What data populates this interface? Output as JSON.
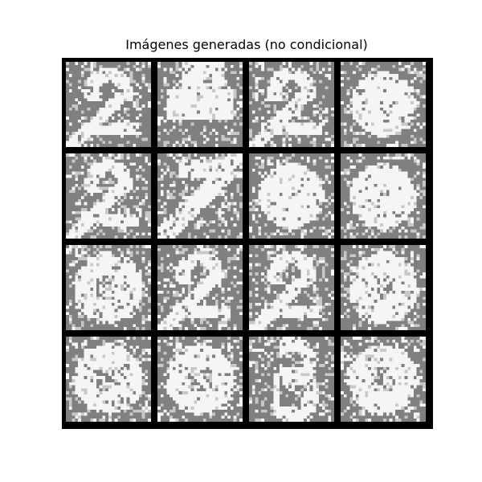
{
  "figure": {
    "title": "Imágenes generadas (no condicional)"
  },
  "grid": {
    "rows": 4,
    "cols": 4,
    "pixels_per_side": 28,
    "background_color": "#000000",
    "tile_background_color": "#808080",
    "foreground_color": "#f5f5f5",
    "noise_color": "#c8c8c8"
  },
  "samples": [
    {
      "seed": 11,
      "shape": "two"
    },
    {
      "seed": 23,
      "shape": "blob-arrow"
    },
    {
      "seed": 37,
      "shape": "two"
    },
    {
      "seed": 41,
      "shape": "blob"
    },
    {
      "seed": 53,
      "shape": "two"
    },
    {
      "seed": 67,
      "shape": "slash"
    },
    {
      "seed": 71,
      "shape": "blob"
    },
    {
      "seed": 83,
      "shape": "blob"
    },
    {
      "seed": 97,
      "shape": "ring"
    },
    {
      "seed": 101,
      "shape": "two"
    },
    {
      "seed": 113,
      "shape": "two"
    },
    {
      "seed": 127,
      "shape": "ring"
    },
    {
      "seed": 131,
      "shape": "ring"
    },
    {
      "seed": 139,
      "shape": "ring"
    },
    {
      "seed": 149,
      "shape": "three"
    },
    {
      "seed": 157,
      "shape": "ring"
    }
  ]
}
